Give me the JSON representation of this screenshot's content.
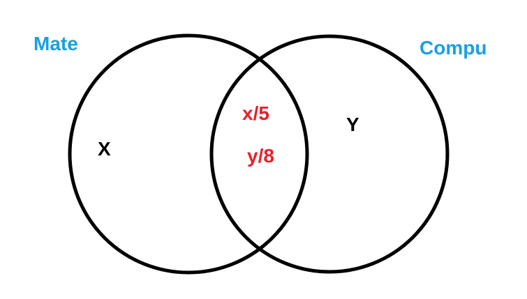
{
  "sets": {
    "left": {
      "label": "Mate",
      "color": "#1a9fe0"
    },
    "right": {
      "label": "Compu",
      "color": "#1a9fe0"
    }
  },
  "regions": {
    "left_only": {
      "label": "X",
      "color": "#000000"
    },
    "right_only": {
      "label": "Y",
      "color": "#000000"
    },
    "intersection": [
      {
        "label": "x/5",
        "color": "#e8202a"
      },
      {
        "label": "y/8",
        "color": "#e8202a"
      }
    ]
  },
  "outline_color": "#000000"
}
